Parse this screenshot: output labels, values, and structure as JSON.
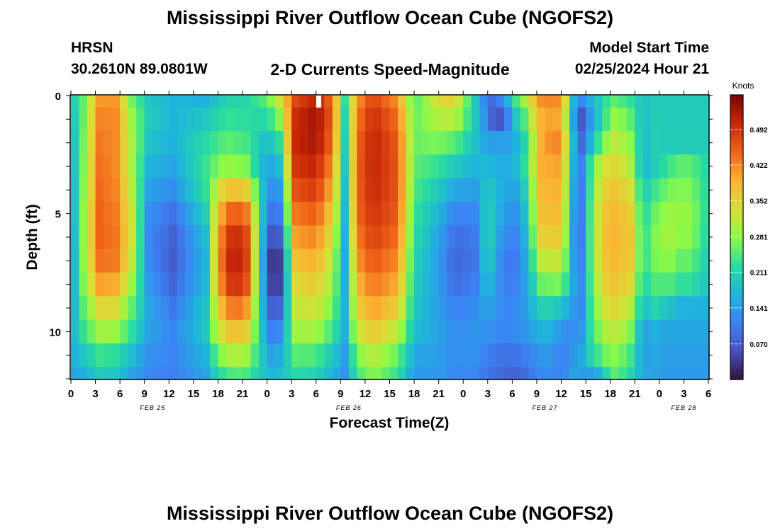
{
  "header": {
    "title": "Mississippi River Outflow Ocean Cube (NGOFS2)",
    "station": "HRSN",
    "coords": "30.2610N  89.0801W",
    "subtitle": "2-D Currents Speed-Magnitude",
    "model_start_label": "Model Start Time",
    "model_start_value": "02/25/2024 Hour 21",
    "footer_title": "Mississippi River Outflow Ocean Cube (NGOFS2)"
  },
  "chart_data": {
    "type": "heatmap",
    "title": "2-D Currents Speed-Magnitude",
    "xlabel": "Forecast Time(Z)",
    "ylabel": "Depth (ft)",
    "colorbar_label": "Knots",
    "x_range_hours": [
      0,
      78
    ],
    "y_range_ft": [
      0,
      12
    ],
    "y_ticks": [
      0,
      5,
      10
    ],
    "x_tick_labels": [
      "0",
      "3",
      "6",
      "9",
      "12",
      "15",
      "18",
      "21",
      "0",
      "3",
      "6",
      "9",
      "12",
      "15",
      "18",
      "21",
      "0",
      "3",
      "6",
      "9",
      "12",
      "15",
      "18",
      "21",
      "0",
      "3",
      "6"
    ],
    "date_labels": [
      {
        "hour": 10,
        "text": "FEB 25"
      },
      {
        "hour": 34,
        "text": "FEB 26"
      },
      {
        "hour": 58,
        "text": "FEB 27"
      },
      {
        "hour": 75,
        "text": "FEB 28"
      }
    ],
    "colorbar_range": [
      0.0,
      0.56
    ],
    "colorbar_ticks": [
      "0.070",
      "0.141",
      "0.211",
      "0.281",
      "0.352",
      "0.422",
      "0.492"
    ],
    "colorbar_tick_values": [
      0.07,
      0.141,
      0.211,
      0.281,
      0.352,
      0.422,
      0.492
    ],
    "depth_levels_ft": [
      0.0,
      0.5,
      1.5,
      2.5,
      3.5,
      4.5,
      5.5,
      6.5,
      7.5,
      8.5,
      9.5,
      10.5,
      11.5
    ],
    "speed_keyframes": [
      {
        "t": 0,
        "profile": [
          0.2,
          0.18,
          0.17,
          0.16,
          0.15,
          0.15,
          0.14,
          0.13,
          0.13,
          0.14,
          0.15,
          0.17,
          0.15
        ]
      },
      {
        "t": 1.5,
        "profile": [
          0.25,
          0.26,
          0.26,
          0.27,
          0.27,
          0.28,
          0.28,
          0.28,
          0.28,
          0.26,
          0.24,
          0.22,
          0.16
        ]
      },
      {
        "t": 3.5,
        "profile": [
          0.4,
          0.42,
          0.43,
          0.44,
          0.44,
          0.45,
          0.45,
          0.45,
          0.43,
          0.38,
          0.32,
          0.27,
          0.2
        ]
      },
      {
        "t": 5.5,
        "profile": [
          0.4,
          0.42,
          0.42,
          0.42,
          0.42,
          0.43,
          0.43,
          0.44,
          0.42,
          0.37,
          0.32,
          0.26,
          0.19
        ]
      },
      {
        "t": 7.5,
        "profile": [
          0.25,
          0.28,
          0.3,
          0.3,
          0.3,
          0.32,
          0.33,
          0.33,
          0.31,
          0.27,
          0.24,
          0.21,
          0.15
        ]
      },
      {
        "t": 9.5,
        "profile": [
          0.19,
          0.2,
          0.2,
          0.18,
          0.16,
          0.14,
          0.12,
          0.12,
          0.13,
          0.15,
          0.16,
          0.14,
          0.12
        ]
      },
      {
        "t": 12.5,
        "profile": [
          0.17,
          0.17,
          0.17,
          0.16,
          0.14,
          0.11,
          0.08,
          0.07,
          0.07,
          0.09,
          0.11,
          0.12,
          0.11
        ]
      },
      {
        "t": 16.5,
        "profile": [
          0.15,
          0.18,
          0.21,
          0.23,
          0.24,
          0.22,
          0.19,
          0.17,
          0.17,
          0.18,
          0.2,
          0.19,
          0.15
        ]
      },
      {
        "t": 19,
        "profile": [
          0.2,
          0.22,
          0.24,
          0.27,
          0.31,
          0.35,
          0.38,
          0.39,
          0.37,
          0.33,
          0.29,
          0.26,
          0.21
        ]
      },
      {
        "t": 21.5,
        "profile": [
          0.21,
          0.22,
          0.23,
          0.25,
          0.29,
          0.34,
          0.37,
          0.37,
          0.35,
          0.32,
          0.28,
          0.25,
          0.21
        ]
      },
      {
        "t": 24,
        "profile": [
          0.27,
          0.24,
          0.19,
          0.16,
          0.13,
          0.11,
          0.08,
          0.04,
          0.03,
          0.06,
          0.09,
          0.12,
          0.17
        ]
      },
      {
        "t": 25.5,
        "profile": [
          0.35,
          0.3,
          0.25,
          0.2,
          0.16,
          0.12,
          0.09,
          0.05,
          0.03,
          0.06,
          0.1,
          0.14,
          0.18
        ]
      },
      {
        "t": 27.5,
        "profile": [
          0.46,
          0.49,
          0.51,
          0.5,
          0.48,
          0.45,
          0.42,
          0.39,
          0.36,
          0.33,
          0.31,
          0.28,
          0.22
        ]
      },
      {
        "t": 30,
        "profile": [
          0.5,
          0.53,
          0.54,
          0.52,
          0.5,
          0.47,
          0.44,
          0.41,
          0.38,
          0.35,
          0.32,
          0.28,
          0.21
        ]
      },
      {
        "t": 32,
        "profile": [
          0.43,
          0.45,
          0.45,
          0.43,
          0.4,
          0.38,
          0.35,
          0.32,
          0.3,
          0.28,
          0.25,
          0.22,
          0.17
        ]
      },
      {
        "t": 33.5,
        "profile": [
          0.24,
          0.22,
          0.21,
          0.2,
          0.19,
          0.18,
          0.17,
          0.16,
          0.16,
          0.17,
          0.17,
          0.16,
          0.13
        ]
      },
      {
        "t": 35,
        "profile": [
          0.4,
          0.42,
          0.44,
          0.45,
          0.45,
          0.45,
          0.44,
          0.42,
          0.4,
          0.37,
          0.34,
          0.3,
          0.24
        ]
      },
      {
        "t": 37,
        "profile": [
          0.47,
          0.49,
          0.51,
          0.51,
          0.51,
          0.5,
          0.49,
          0.47,
          0.45,
          0.42,
          0.39,
          0.35,
          0.28
        ]
      },
      {
        "t": 40,
        "profile": [
          0.4,
          0.43,
          0.45,
          0.46,
          0.46,
          0.46,
          0.45,
          0.43,
          0.41,
          0.38,
          0.34,
          0.29,
          0.23
        ]
      },
      {
        "t": 42,
        "profile": [
          0.23,
          0.25,
          0.26,
          0.26,
          0.25,
          0.24,
          0.23,
          0.22,
          0.21,
          0.2,
          0.19,
          0.17,
          0.14
        ]
      },
      {
        "t": 45,
        "profile": [
          0.36,
          0.33,
          0.29,
          0.25,
          0.21,
          0.18,
          0.16,
          0.14,
          0.14,
          0.14,
          0.15,
          0.15,
          0.14
        ]
      },
      {
        "t": 47,
        "profile": [
          0.37,
          0.34,
          0.28,
          0.22,
          0.17,
          0.13,
          0.1,
          0.08,
          0.08,
          0.1,
          0.12,
          0.13,
          0.12
        ]
      },
      {
        "t": 49.5,
        "profile": [
          0.19,
          0.2,
          0.19,
          0.18,
          0.16,
          0.13,
          0.11,
          0.1,
          0.1,
          0.12,
          0.13,
          0.14,
          0.12
        ]
      },
      {
        "t": 51,
        "profile": [
          0.08,
          0.1,
          0.13,
          0.16,
          0.19,
          0.21,
          0.22,
          0.22,
          0.2,
          0.17,
          0.14,
          0.12,
          0.1
        ]
      },
      {
        "t": 53,
        "profile": [
          0.18,
          0.16,
          0.15,
          0.15,
          0.16,
          0.15,
          0.13,
          0.11,
          0.1,
          0.11,
          0.12,
          0.11,
          0.08
        ]
      },
      {
        "t": 55,
        "profile": [
          0.3,
          0.27,
          0.23,
          0.2,
          0.17,
          0.14,
          0.12,
          0.11,
          0.11,
          0.12,
          0.13,
          0.12,
          0.08
        ]
      },
      {
        "t": 57.5,
        "profile": [
          0.44,
          0.44,
          0.42,
          0.4,
          0.39,
          0.38,
          0.37,
          0.34,
          0.29,
          0.23,
          0.18,
          0.15,
          0.12
        ]
      },
      {
        "t": 60,
        "profile": [
          0.45,
          0.46,
          0.44,
          0.41,
          0.4,
          0.39,
          0.38,
          0.35,
          0.3,
          0.24,
          0.19,
          0.16,
          0.13
        ]
      },
      {
        "t": 61.5,
        "profile": [
          0.2,
          0.19,
          0.18,
          0.17,
          0.16,
          0.15,
          0.14,
          0.14,
          0.15,
          0.16,
          0.17,
          0.18,
          0.17
        ]
      },
      {
        "t": 62.5,
        "profile": [
          0.17,
          0.15,
          0.13,
          0.12,
          0.11,
          0.11,
          0.11,
          0.11,
          0.12,
          0.13,
          0.15,
          0.18,
          0.19
        ]
      },
      {
        "t": 64,
        "profile": [
          0.2,
          0.23,
          0.25,
          0.27,
          0.29,
          0.3,
          0.31,
          0.31,
          0.3,
          0.28,
          0.26,
          0.24,
          0.21
        ]
      },
      {
        "t": 66,
        "profile": [
          0.24,
          0.28,
          0.31,
          0.34,
          0.37,
          0.39,
          0.4,
          0.4,
          0.39,
          0.37,
          0.34,
          0.31,
          0.26
        ]
      },
      {
        "t": 68,
        "profile": [
          0.22,
          0.25,
          0.28,
          0.31,
          0.34,
          0.36,
          0.37,
          0.37,
          0.36,
          0.34,
          0.31,
          0.28,
          0.23
        ]
      },
      {
        "t": 70,
        "profile": [
          0.2,
          0.21,
          0.22,
          0.23,
          0.23,
          0.23,
          0.23,
          0.22,
          0.22,
          0.21,
          0.2,
          0.19,
          0.17
        ]
      },
      {
        "t": 72,
        "profile": [
          0.2,
          0.2,
          0.2,
          0.2,
          0.19,
          0.19,
          0.18,
          0.18,
          0.17,
          0.17,
          0.16,
          0.15,
          0.14
        ]
      },
      {
        "t": 74,
        "profile": [
          0.2,
          0.2,
          0.2,
          0.2,
          0.19,
          0.19,
          0.18,
          0.18,
          0.17,
          0.17,
          0.16,
          0.15,
          0.14
        ]
      },
      {
        "t": 78,
        "profile": [
          0.2,
          0.2,
          0.2,
          0.2,
          0.19,
          0.19,
          0.18,
          0.18,
          0.17,
          0.17,
          0.16,
          0.15,
          0.14
        ]
      }
    ],
    "features": [
      {
        "t0": 16.5,
        "t1": 24,
        "d0": 3.5,
        "d1": 12,
        "delta": 0.16
      },
      {
        "t0": 53,
        "t1": 58,
        "d0": 0,
        "d1": 3,
        "delta": -0.05
      },
      {
        "t0": 57,
        "t1": 63,
        "d0": 0,
        "d1": 1.5,
        "delta": -0.06
      },
      {
        "t0": 61.5,
        "t1": 66,
        "d0": 0,
        "d1": 2.5,
        "delta": -0.09
      },
      {
        "t0": 68,
        "t1": 74,
        "d0": 3.5,
        "d1": 9.5,
        "delta": 0.1
      },
      {
        "t0": 68.5,
        "t1": 71.5,
        "d0": 0,
        "d1": 12,
        "delta": -0.07
      },
      {
        "t0": 59,
        "t1": 63,
        "d0": 8.5,
        "d1": 12,
        "delta": -0.06
      },
      {
        "t0": 51,
        "t1": 54,
        "d0": 0,
        "d1": 2,
        "delta": -0.08
      },
      {
        "t0": 62,
        "t1": 66,
        "d0": 11,
        "d1": 12,
        "delta": -0.1
      },
      {
        "t0": 72,
        "t1": 78,
        "d0": 2,
        "d1": 9,
        "delta": 0.12
      }
    ]
  }
}
